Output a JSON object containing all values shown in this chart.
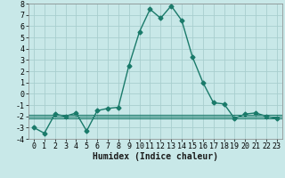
{
  "x": [
    0,
    1,
    2,
    3,
    4,
    5,
    6,
    7,
    8,
    9,
    10,
    11,
    12,
    13,
    14,
    15,
    16,
    17,
    18,
    19,
    20,
    21,
    22,
    23
  ],
  "y": [
    -3.0,
    -3.5,
    -1.8,
    -2.0,
    -1.7,
    -3.3,
    -1.5,
    -1.3,
    -1.2,
    2.5,
    5.5,
    7.5,
    6.7,
    7.8,
    6.5,
    3.3,
    1.0,
    -0.8,
    -0.9,
    -2.2,
    -1.8,
    -1.7,
    -2.0,
    -2.2
  ],
  "line_color": "#1a7a6a",
  "hline_color": "#1a7a6a",
  "bg_color": "#c8e8e8",
  "grid_color": "#a8cece",
  "xlabel": "Humidex (Indice chaleur)",
  "xlim": [
    -0.5,
    23.5
  ],
  "ylim": [
    -4,
    8
  ],
  "yticks": [
    -4,
    -3,
    -2,
    -1,
    0,
    1,
    2,
    3,
    4,
    5,
    6,
    7,
    8
  ],
  "xticks": [
    0,
    1,
    2,
    3,
    4,
    5,
    6,
    7,
    8,
    9,
    10,
    11,
    12,
    13,
    14,
    15,
    16,
    17,
    18,
    19,
    20,
    21,
    22,
    23
  ],
  "marker": "D",
  "markersize": 2.5,
  "linewidth": 1.0,
  "xlabel_fontsize": 7,
  "tick_fontsize": 6,
  "hlines": [
    -1.85,
    -2.0,
    -2.15
  ]
}
